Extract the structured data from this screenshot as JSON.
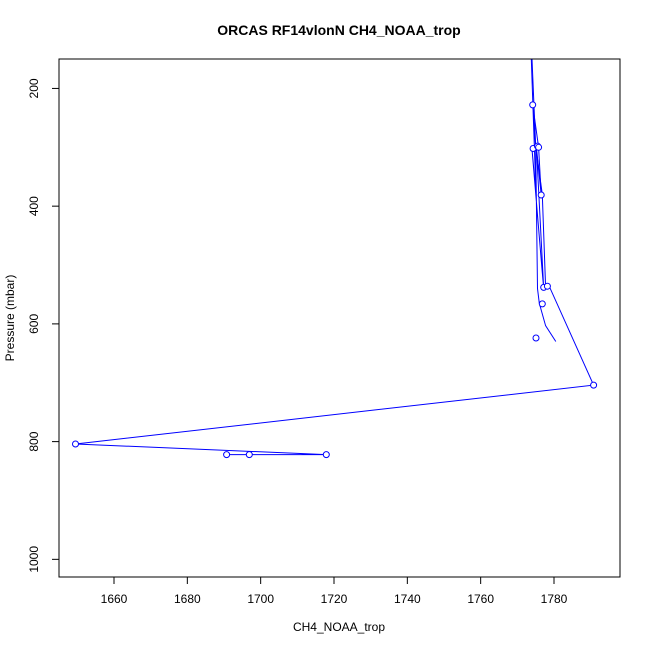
{
  "chart_data": {
    "type": "line",
    "title": "ORCAS RF14vlonN CH4_NOAA_trop",
    "xlabel": "CH4_NOAA_trop",
    "ylabel": "Pressure (mbar)",
    "xlim": [
      1645,
      1798
    ],
    "ylim": [
      1030,
      150
    ],
    "y_reversed": true,
    "x_ticks": [
      1660,
      1680,
      1700,
      1720,
      1740,
      1760,
      1780
    ],
    "y_ticks": [
      200,
      400,
      600,
      800,
      1000
    ],
    "series_color": "#0000ff",
    "grid": false,
    "legend": "none",
    "series": [
      {
        "x": [
          1780.5,
          1777.7,
          1776.0,
          1775.5,
          1775.0,
          1774.2,
          1775.8,
          1776.5,
          1775.2,
          1777.2,
          1776.7,
          1774.0,
          1775.1,
          1773.8
        ],
        "y": [
          630,
          603,
          565,
          540,
          300,
          228,
          300,
          381,
          300,
          540,
          505,
          303,
          380,
          150
        ]
      },
      {
        "x": [
          1774.0,
          1775.0,
          1776.8,
          1777.7,
          1778.7,
          1790.8,
          1649.5,
          1717.9,
          1696.9,
          1690.7,
          1717.9
        ],
        "y": [
          150,
          298,
          380,
          538,
          536,
          704,
          804,
          822,
          822,
          822,
          822
        ]
      }
    ],
    "markers": {
      "x": [
        1774.2,
        1774.3,
        1775.5,
        1775.8,
        1776.5,
        1777.2,
        1778.2,
        1776.8,
        1775.1,
        1790.8,
        1649.5,
        1690.7,
        1696.9,
        1717.9
      ],
      "y": [
        228,
        302,
        298,
        300,
        381,
        538,
        536,
        566,
        624,
        704,
        804,
        822,
        822,
        822
      ]
    }
  }
}
